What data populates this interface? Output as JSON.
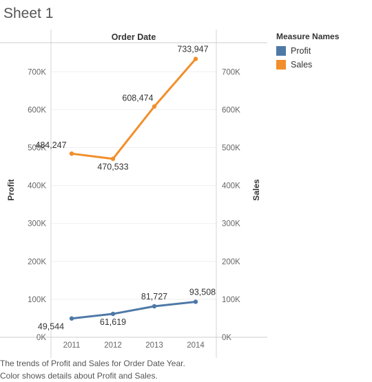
{
  "sheet": {
    "title": "Sheet 1"
  },
  "legend": {
    "title": "Measure Names",
    "items": [
      {
        "label": "Profit",
        "color": "#4e79a7"
      },
      {
        "label": "Sales",
        "color": "#f28e2b"
      }
    ]
  },
  "caption": {
    "line1": "The trends of Profit and Sales for Order Date Year.",
    "line2": "Color shows details about Profit and Sales."
  },
  "chart_data": {
    "type": "line",
    "column_header": "Order Date",
    "categories": [
      "2011",
      "2012",
      "2013",
      "2014"
    ],
    "left_axis_label": "Profit",
    "right_axis_label": "Sales",
    "ylim": [
      0,
      800000
    ],
    "y_ticks": [
      0,
      100000,
      200000,
      300000,
      400000,
      500000,
      600000,
      700000
    ],
    "y_tick_labels": [
      "0K",
      "100K",
      "200K",
      "300K",
      "400K",
      "500K",
      "600K",
      "700K"
    ],
    "grid": true,
    "legend_position": "top-right",
    "series": [
      {
        "name": "Profit",
        "color": "#4e79a7",
        "values": [
          49544,
          61619,
          81727,
          93508
        ],
        "labels": [
          "49,544",
          "61,619",
          "81,727",
          "93,508"
        ]
      },
      {
        "name": "Sales",
        "color": "#f28e2b",
        "values": [
          484247,
          470533,
          608474,
          733947
        ],
        "labels": [
          "484,247",
          "470,533",
          "608,474",
          "733,947"
        ]
      }
    ]
  }
}
